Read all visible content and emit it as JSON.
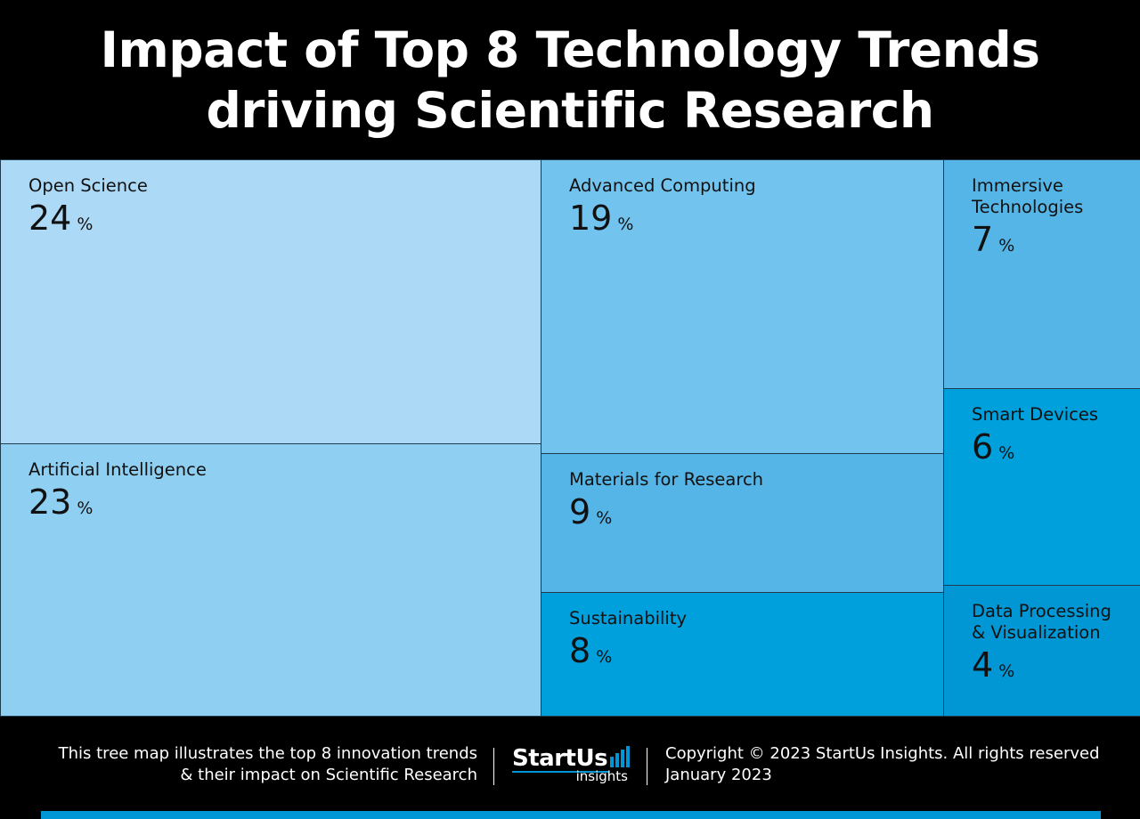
{
  "header": {
    "title_line1": "Impact of Top 8 Technology Trends",
    "title_line2": "driving Scientific Research"
  },
  "chart_data": {
    "type": "treemap",
    "title": "Impact of Top 8 Technology Trends driving Scientific Research",
    "unit": "%",
    "items": [
      {
        "label": "Open Science",
        "value": 24,
        "color": "#acd9f6"
      },
      {
        "label": "Artificial Intelligence",
        "value": 23,
        "color": "#8fcff2"
      },
      {
        "label": "Advanced Computing",
        "value": 19,
        "color": "#72c4ee"
      },
      {
        "label": "Materials for Research",
        "value": 9,
        "color": "#55b5e6"
      },
      {
        "label": "Sustainability",
        "value": 8,
        "color": "#00a0dd"
      },
      {
        "label": "Immersive Technologies",
        "value": 7,
        "color": "#55b5e6"
      },
      {
        "label": "Smart Devices",
        "value": 6,
        "color": "#00a0dd"
      },
      {
        "label": "Data Processing & Visualization",
        "value": 4,
        "color": "#0097d4"
      }
    ]
  },
  "footer": {
    "description_line1": "This tree map illustrates the top 8 innovation trends",
    "description_line2": "& their impact on Scientific Research",
    "brand_name": "StartUs",
    "brand_sub": "insights",
    "copyright": "Copyright © 2023 StartUs Insights. All rights reserved",
    "date": "January 2023",
    "accent_color": "#0096d6"
  }
}
